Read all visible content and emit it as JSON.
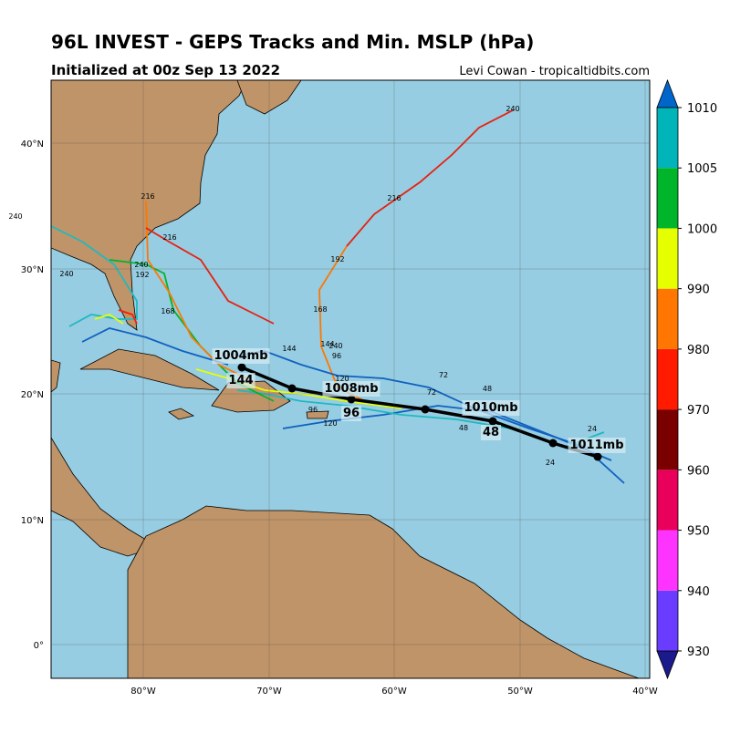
{
  "header": {
    "title": "96L INVEST - GEPS Tracks and Min. MSLP (hPa)",
    "subtitle": "Initialized at 00z Sep 13 2022",
    "credit": "Levi Cowan - tropicaltidbits.com"
  },
  "map": {
    "lon_labels": [
      "80°W",
      "70°W",
      "60°W",
      "50°W",
      "40°W"
    ],
    "lat_labels": [
      "40°N",
      "30°N",
      "20°N",
      "10°N",
      "0°"
    ],
    "track_labels": [
      "1011mb",
      "1010mb",
      "48",
      "1008mb",
      "96",
      "1004mb",
      "144"
    ],
    "hour_labels": [
      "240",
      "216",
      "192",
      "168",
      "144",
      "96",
      "120",
      "72",
      "48",
      "24",
      "240",
      "216",
      "192",
      "168",
      "240",
      "216",
      "240",
      "240",
      "144",
      "120",
      "96",
      "72",
      "48",
      "24"
    ]
  },
  "colorbar": {
    "ticks": [
      930,
      940,
      950,
      960,
      970,
      980,
      990,
      1000,
      1005,
      1010
    ],
    "colors": [
      "#6a3cff",
      "#ff33ff",
      "#e8005a",
      "#7a0000",
      "#ff1a00",
      "#ff7700",
      "#e6ff00",
      "#00b52a",
      "#00b4b9"
    ],
    "under_color": "#1a1a8c",
    "over_color": "#0066cc"
  }
}
